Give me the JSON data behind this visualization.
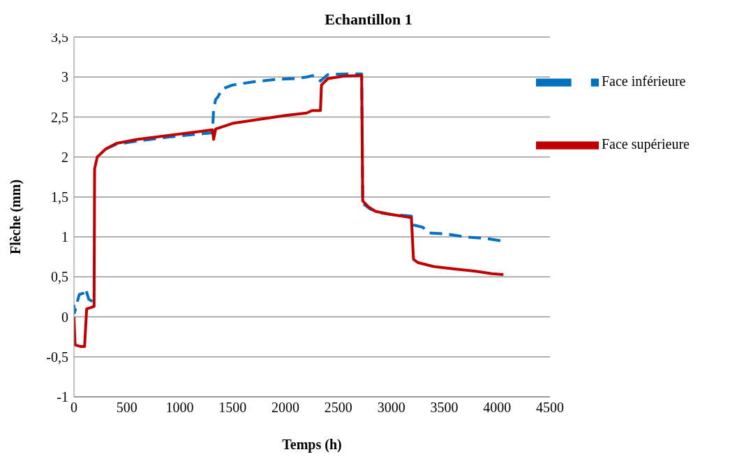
{
  "chart_data": {
    "type": "line",
    "title": "Echantillon 1",
    "xlabel": "Temps (h)",
    "ylabel": "Flèche (mm)",
    "xlim": [
      0,
      4500
    ],
    "xticks": [
      0,
      500,
      1000,
      1500,
      2000,
      2500,
      3000,
      3500,
      4000,
      4500
    ],
    "ylim": [
      -1,
      3.5
    ],
    "yticks": [
      {
        "value": -1,
        "label": "-1"
      },
      {
        "value": -0.5,
        "label": "-0,5"
      },
      {
        "value": 0,
        "label": "0"
      },
      {
        "value": 0.5,
        "label": "0,5"
      },
      {
        "value": 1,
        "label": "1"
      },
      {
        "value": 1.5,
        "label": "1,5"
      },
      {
        "value": 2,
        "label": "2"
      },
      {
        "value": 2.5,
        "label": "2,5"
      },
      {
        "value": 3,
        "label": "3"
      },
      {
        "value": 3.5,
        "label": "3,5"
      }
    ],
    "grid": "y",
    "legend": "top right",
    "marker": "none",
    "series": [
      {
        "name": "Face inférieure",
        "color": "#0070c0",
        "line_style": "dashed",
        "x": [
          0,
          5,
          50,
          100,
          110,
          140,
          190,
          195,
          220,
          300,
          400,
          600,
          900,
          1200,
          1300,
          1310,
          1320,
          1340,
          1360,
          1400,
          1500,
          1700,
          1900,
          2100,
          2200,
          2270,
          2330,
          2400,
          2600,
          2720,
          2730,
          2800,
          2900,
          3000,
          3100,
          3190,
          3210,
          3300,
          3350,
          3500,
          3700,
          3900,
          4050
        ],
        "values": [
          0.15,
          0.05,
          0.28,
          0.3,
          0.35,
          0.22,
          0.18,
          null,
          null,
          2.1,
          2.16,
          2.2,
          2.25,
          2.29,
          2.3,
          2.32,
          2.6,
          2.72,
          2.75,
          2.85,
          2.9,
          2.94,
          2.97,
          2.98,
          3.0,
          3.02,
          2.95,
          3.03,
          3.04,
          3.04,
          1.42,
          1.35,
          1.3,
          1.28,
          1.27,
          1.26,
          1.15,
          1.12,
          1.05,
          1.04,
          1.0,
          0.98,
          0.95
        ]
      },
      {
        "name": "Face supérieure",
        "color": "#c00000",
        "line_style": "solid",
        "x": [
          0,
          10,
          60,
          100,
          120,
          190,
          195,
          220,
          300,
          400,
          600,
          900,
          1200,
          1310,
          1320,
          1340,
          1500,
          1800,
          2000,
          2200,
          2250,
          2330,
          2340,
          2400,
          2550,
          2720,
          2730,
          2780,
          2850,
          3000,
          3150,
          3190,
          3210,
          3250,
          3400,
          3600,
          3800,
          3950,
          4060
        ],
        "values": [
          0.0,
          -0.35,
          -0.37,
          -0.37,
          0.1,
          0.13,
          1.85,
          2.0,
          2.1,
          2.17,
          2.22,
          2.27,
          2.32,
          2.34,
          2.22,
          2.35,
          2.42,
          2.48,
          2.52,
          2.55,
          2.58,
          2.58,
          2.9,
          2.98,
          3.01,
          3.02,
          1.45,
          1.38,
          1.32,
          1.28,
          1.25,
          1.24,
          0.72,
          0.68,
          0.63,
          0.6,
          0.57,
          0.54,
          0.53
        ]
      }
    ]
  }
}
